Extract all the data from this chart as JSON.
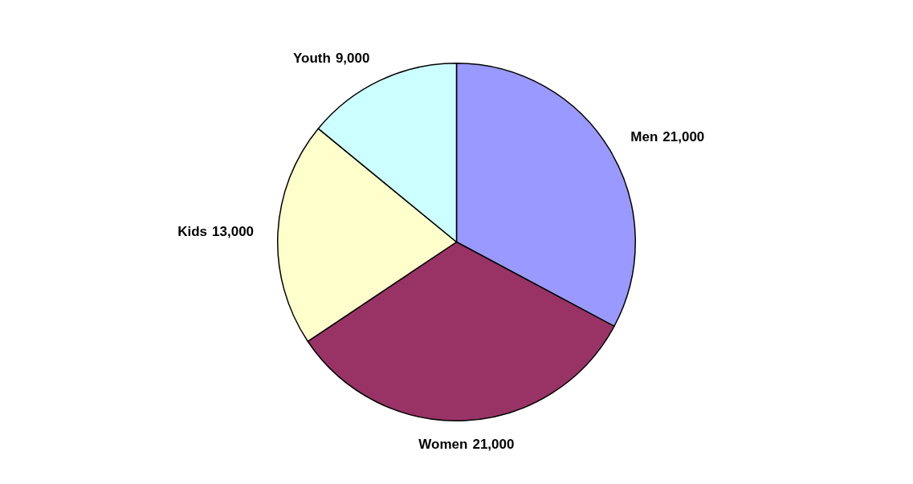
{
  "chart_data": {
    "type": "pie",
    "categories": [
      "Men",
      "Women",
      "Kids",
      "Youth"
    ],
    "values": [
      21000,
      21000,
      13000,
      9000
    ],
    "colors": [
      "#9999ff",
      "#993366",
      "#ffffcc",
      "#ccffff"
    ],
    "value_labels": [
      "21,000",
      "21,000",
      "13,000",
      "9,000"
    ],
    "legend": false
  }
}
